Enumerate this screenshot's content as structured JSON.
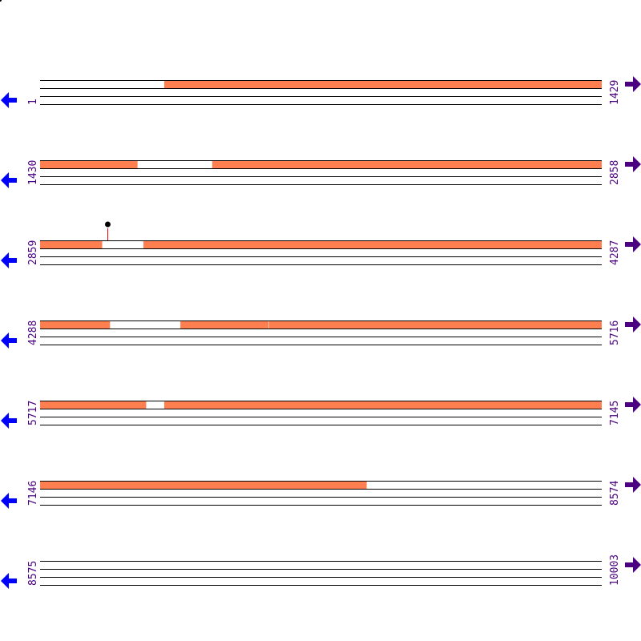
{
  "sequence_length": 10003,
  "bases_per_row": 1429,
  "rows": [
    {
      "start": 1,
      "end": 1429
    },
    {
      "start": 1430,
      "end": 2858
    },
    {
      "start": 2859,
      "end": 4287
    },
    {
      "start": 4288,
      "end": 5716
    },
    {
      "start": 5717,
      "end": 7145
    },
    {
      "start": 7146,
      "end": 8574
    },
    {
      "start": 8575,
      "end": 10003
    }
  ],
  "features": [
    {
      "start": 317,
      "end": 1677
    },
    {
      "start": 1868,
      "end": 3016
    },
    {
      "start": 3122,
      "end": 4465
    },
    {
      "start": 4645,
      "end": 4869
    },
    {
      "start": 4871,
      "end": 5986
    },
    {
      "start": 6033,
      "end": 7976
    }
  ],
  "markers": [
    {
      "position": 3030
    }
  ],
  "colors": {
    "feature": "#ff7f50",
    "label": "#4b0082",
    "reverse_arrow": "#0000ff",
    "forward_arrow": "#4b0082",
    "marker_stem": "#ff0000",
    "marker_head": "#000000"
  },
  "icons": {
    "left": "arrow-left-icon",
    "right": "arrow-right-icon"
  }
}
